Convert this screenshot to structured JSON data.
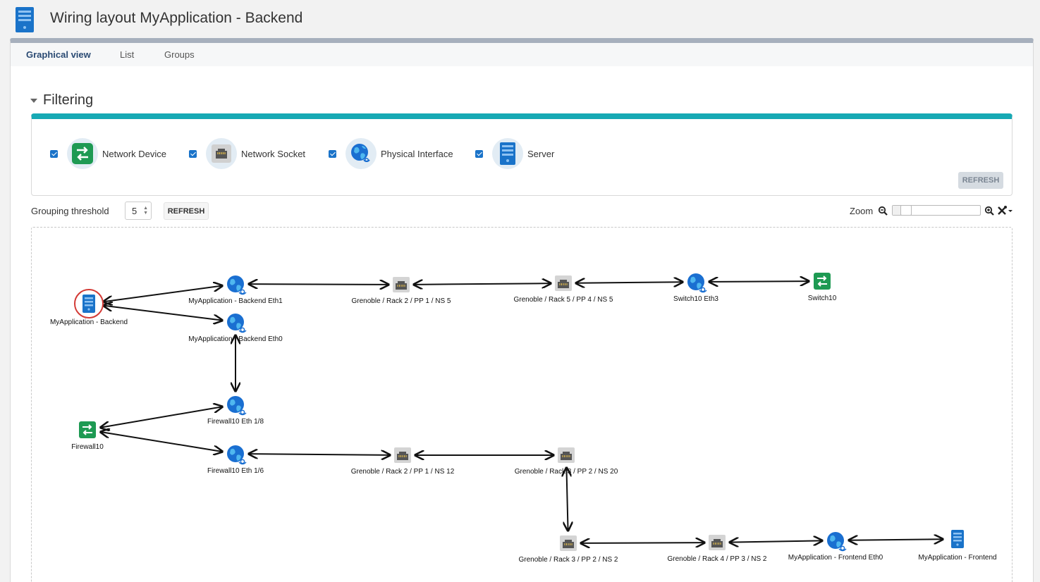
{
  "page": {
    "title": "Wiring layout MyApplication - Backend",
    "icon": "server-icon"
  },
  "tabs": [
    {
      "label": "Graphical view",
      "active": true
    },
    {
      "label": "List",
      "active": false
    },
    {
      "label": "Groups",
      "active": false
    }
  ],
  "filtering": {
    "title": "Filtering",
    "items": [
      {
        "label": "Network Device",
        "icon": "network-device-icon",
        "checked": true
      },
      {
        "label": "Network Socket",
        "icon": "network-socket-icon",
        "checked": true
      },
      {
        "label": "Physical Interface",
        "icon": "physical-interface-icon",
        "checked": true
      },
      {
        "label": "Server",
        "icon": "server-icon",
        "checked": true
      }
    ],
    "refresh_label": "REFRESH"
  },
  "grouping": {
    "label": "Grouping threshold",
    "value": "5",
    "refresh_label": "REFRESH"
  },
  "zoom": {
    "label": "Zoom",
    "level": 0.1
  },
  "colors": {
    "accent": "#17a9b4",
    "network_device": "#1e9a53",
    "server": "#1a73c9",
    "selected_ring": "#d33a35"
  },
  "graph": {
    "nodes": [
      {
        "id": "n0",
        "label": "MyApplication - Backend",
        "type": "server",
        "selected": true
      },
      {
        "id": "n1",
        "label": "MyApplication - Backend Eth1",
        "type": "interface"
      },
      {
        "id": "n2",
        "label": "Grenoble / Rack 2 / PP 1 / NS 5",
        "type": "socket"
      },
      {
        "id": "n3",
        "label": "Grenoble / Rack 5 / PP 4 / NS 5",
        "type": "socket"
      },
      {
        "id": "n4",
        "label": "Switch10 Eth3",
        "type": "interface"
      },
      {
        "id": "n5",
        "label": "Switch10",
        "type": "device"
      },
      {
        "id": "n6",
        "label": "MyApplication - Backend Eth0",
        "type": "interface"
      },
      {
        "id": "n7",
        "label": "Firewall10 Eth 1/8",
        "type": "interface"
      },
      {
        "id": "n8",
        "label": "Firewall10",
        "type": "device"
      },
      {
        "id": "n9",
        "label": "Firewall10 Eth 1/6",
        "type": "interface"
      },
      {
        "id": "n10",
        "label": "Grenoble / Rack 2 / PP 1 / NS 12",
        "type": "socket"
      },
      {
        "id": "n11",
        "label": "Grenoble / Rack 3 / PP 2 / NS 20",
        "type": "socket"
      },
      {
        "id": "n12",
        "label": "Grenoble / Rack 3 / PP 2 / NS 2",
        "type": "socket"
      },
      {
        "id": "n13",
        "label": "Grenoble / Rack 4 / PP 3 / NS 2",
        "type": "socket"
      },
      {
        "id": "n14",
        "label": "MyApplication - Frontend Eth0",
        "type": "interface"
      },
      {
        "id": "n15",
        "label": "MyApplication - Frontend",
        "type": "server"
      }
    ],
    "edges": [
      [
        "n0",
        "n1"
      ],
      [
        "n1",
        "n2"
      ],
      [
        "n2",
        "n3"
      ],
      [
        "n3",
        "n4"
      ],
      [
        "n4",
        "n5"
      ],
      [
        "n0",
        "n6"
      ],
      [
        "n6",
        "n7"
      ],
      [
        "n8",
        "n7"
      ],
      [
        "n8",
        "n9"
      ],
      [
        "n9",
        "n10"
      ],
      [
        "n10",
        "n11"
      ],
      [
        "n11",
        "n12"
      ],
      [
        "n12",
        "n13"
      ],
      [
        "n13",
        "n14"
      ],
      [
        "n14",
        "n15"
      ]
    ]
  }
}
